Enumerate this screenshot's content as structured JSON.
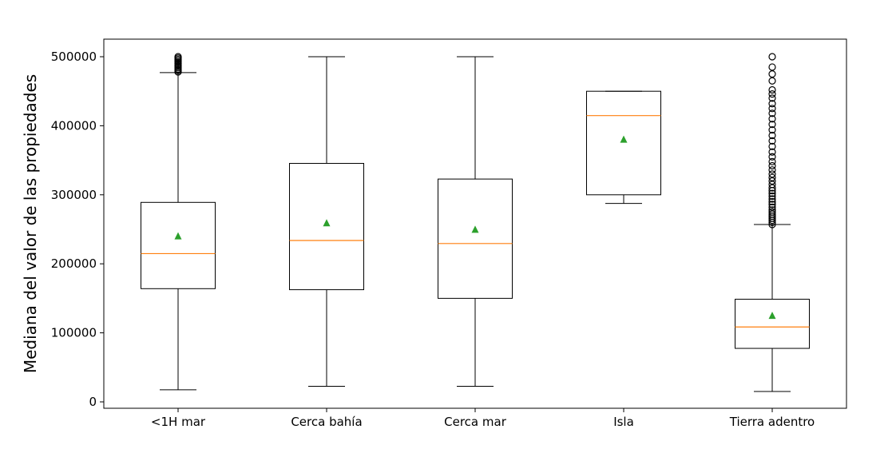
{
  "chart_data": {
    "type": "box",
    "title": "",
    "xlabel": "",
    "ylabel": "Mediana del valor de las propiedades",
    "ylim": [
      -10000,
      525000
    ],
    "yticks": [
      0,
      100000,
      200000,
      300000,
      400000,
      500000
    ],
    "ytick_labels": [
      "0",
      "100000",
      "200000",
      "300000",
      "400000",
      "500000"
    ],
    "grid": false,
    "colors": {
      "box": "#000000",
      "median": "#ff7f0e",
      "mean_marker": "#2ca02c"
    },
    "categories": [
      "<1H mar",
      "Cerca bahía",
      "Cerca mar",
      "Isla",
      "Tierra adentro"
    ],
    "boxes": [
      {
        "category": "<1H mar",
        "whisker_low": 17500,
        "q1": 164000,
        "median": 214800,
        "q3": 289000,
        "whisker_high": 477000,
        "mean": 240000,
        "outliers": [
          478000,
          480000,
          482000,
          484000,
          486000,
          488000,
          490000,
          492000,
          494000,
          496000,
          498000,
          500000
        ]
      },
      {
        "category": "Cerca bahía",
        "whisker_low": 22500,
        "q1": 162500,
        "median": 233800,
        "q3": 345500,
        "whisker_high": 500000,
        "mean": 259000,
        "outliers": []
      },
      {
        "category": "Cerca mar",
        "whisker_low": 22500,
        "q1": 150000,
        "median": 229400,
        "q3": 322800,
        "whisker_high": 500000,
        "mean": 249500,
        "outliers": []
      },
      {
        "category": "Isla",
        "whisker_low": 287500,
        "q1": 300000,
        "median": 414700,
        "q3": 450000,
        "whisker_high": 450000,
        "mean": 380000,
        "outliers": []
      },
      {
        "category": "Tierra adentro",
        "whisker_low": 15000,
        "q1": 77500,
        "median": 108500,
        "q3": 148700,
        "whisker_high": 257000,
        "mean": 124800,
        "outliers": [
          257000,
          260000,
          263000,
          266000,
          269000,
          272000,
          275000,
          278000,
          282000,
          286000,
          290000,
          294000,
          298000,
          302000,
          306000,
          310000,
          315000,
          320000,
          325000,
          330000,
          336000,
          342000,
          348000,
          355000,
          362000,
          370000,
          378000,
          386000,
          394000,
          402000,
          410000,
          418000,
          425000,
          432000,
          440000,
          446000,
          452000,
          465000,
          475000,
          485000,
          500000
        ]
      }
    ]
  }
}
